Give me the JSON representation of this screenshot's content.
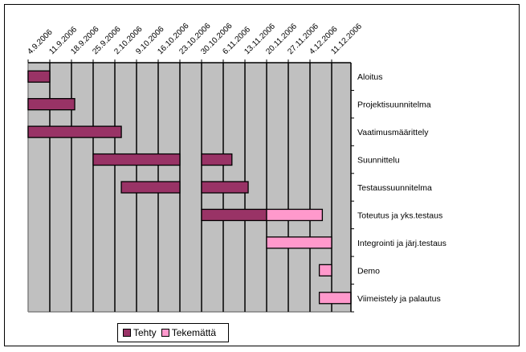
{
  "chart_data": {
    "type": "bar",
    "subtype": "gantt",
    "title": "",
    "x_ticks": [
      "4.9.2006",
      "11.9.2006",
      "18.9.2006",
      "25.9.2006",
      "2.10.2006",
      "9.10.2006",
      "16.10.2006",
      "23.10.2006",
      "30.10.2006",
      "6.11.2006",
      "13.11.2006",
      "20.11.2006",
      "27.11.2006",
      "4.12.2006",
      "11.12.2006"
    ],
    "x_unit": "weeks from 4.9.2006",
    "xlim": [
      0,
      14.9
    ],
    "categories": [
      "Aloitus",
      "Projektisuunnitelma",
      "Vaatimusmäärittely",
      "Suunnittelu",
      "Testaussuunnitelma",
      "Toteutus ja yks.testaus",
      "Integrointi ja järj.testaus",
      "Demo",
      "Viimeistely ja palautus"
    ],
    "series": [
      {
        "name": "Tehty",
        "color": "#993366",
        "tasks": [
          {
            "category": "Aloitus",
            "start": 0,
            "end": 1
          },
          {
            "category": "Projektisuunnitelma",
            "start": 0,
            "end": 2.15
          },
          {
            "category": "Vaatimusmäärittely",
            "start": 0,
            "end": 4.3
          },
          {
            "category": "Suunnittelu",
            "start": 3,
            "end": 7
          },
          {
            "category": "Suunnittelu",
            "start": 8,
            "end": 9.4
          },
          {
            "category": "Testaussuunnitelma",
            "start": 4.3,
            "end": 7
          },
          {
            "category": "Testaussuunnitelma",
            "start": 8,
            "end": 10.15
          },
          {
            "category": "Toteutus ja yks.testaus",
            "start": 8,
            "end": 11
          }
        ]
      },
      {
        "name": "Tekemättä",
        "color": "#FF99CC",
        "tasks": [
          {
            "category": "Toteutus ja yks.testaus",
            "start": 11,
            "end": 13.57
          },
          {
            "category": "Integrointi ja järj.testaus",
            "start": 11,
            "end": 14
          },
          {
            "category": "Demo",
            "start": 13.43,
            "end": 14
          },
          {
            "category": "Viimeistely ja palautus",
            "start": 13.43,
            "end": 14.9
          }
        ]
      }
    ],
    "legend": {
      "position": "bottom",
      "entries": [
        "Tehty",
        "Tekemättä"
      ]
    },
    "grid": true,
    "plot_background": "#C0C0C0"
  },
  "legend": {
    "done_label": "Tehty",
    "todo_label": "Tekemättä"
  }
}
